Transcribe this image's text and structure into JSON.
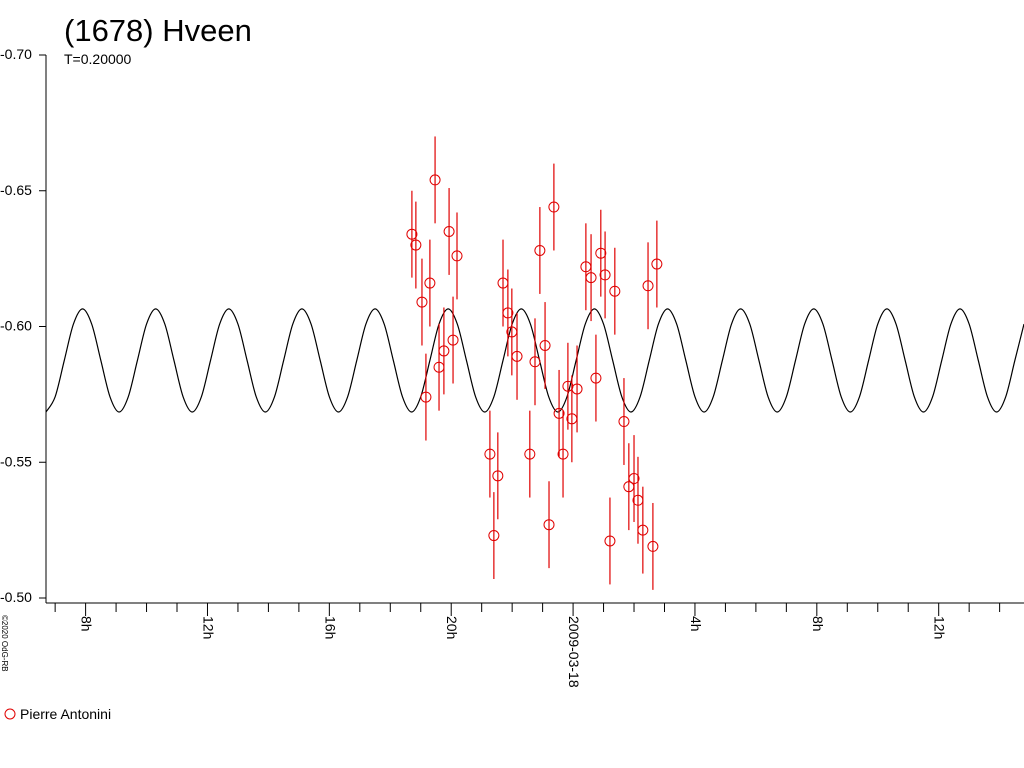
{
  "chart_data": {
    "type": "scatter",
    "title": "(1678) Hveen",
    "subtitle": "T=0.20000",
    "credit": "©2020 OdG-RB",
    "xlim": [
      6.7,
      38.8
    ],
    "ylim": [
      -0.5,
      -0.7
    ],
    "yticks": [
      {
        "value": -0.7,
        "label": "-0.70"
      },
      {
        "value": -0.65,
        "label": "-0.65"
      },
      {
        "value": -0.6,
        "label": "-0.60"
      },
      {
        "value": -0.55,
        "label": "-0.55"
      },
      {
        "value": -0.5,
        "label": "-0.50"
      }
    ],
    "xticks": [
      {
        "value": 8,
        "label": "8h"
      },
      {
        "value": 12,
        "label": "12h"
      },
      {
        "value": 16,
        "label": "16h"
      },
      {
        "value": 20,
        "label": "20h"
      },
      {
        "value": 24,
        "label": "2009-03-18"
      },
      {
        "value": 28,
        "label": "4h"
      },
      {
        "value": 32,
        "label": "8h"
      },
      {
        "value": 36,
        "label": "12h"
      }
    ],
    "xminorticks": [
      7,
      9,
      10,
      11,
      13,
      14,
      15,
      17,
      18,
      19,
      21,
      22,
      23,
      25,
      26,
      27,
      29,
      30,
      31,
      33,
      34,
      35,
      37,
      38
    ],
    "series": [
      {
        "name": "Pierre Antonini",
        "color": "#e00000",
        "x": [
          18.71,
          18.84,
          19.04,
          19.17,
          19.3,
          19.47,
          19.6,
          19.76,
          19.93,
          20.06,
          20.19,
          21.27,
          21.4,
          21.53,
          21.7,
          21.86,
          21.99,
          22.16,
          22.58,
          22.75,
          22.91,
          23.08,
          23.21,
          23.37,
          23.54,
          23.67,
          23.83,
          23.96,
          24.13,
          24.42,
          24.59,
          24.75,
          24.91,
          25.05,
          25.21,
          25.37,
          25.67,
          25.83,
          26.0,
          26.13,
          26.29,
          26.46,
          26.62,
          26.75
        ],
        "values": [
          -0.634,
          -0.63,
          -0.609,
          -0.574,
          -0.616,
          -0.654,
          -0.585,
          -0.591,
          -0.635,
          -0.595,
          -0.626,
          -0.553,
          -0.523,
          -0.545,
          -0.616,
          -0.605,
          -0.598,
          -0.589,
          -0.553,
          -0.587,
          -0.628,
          -0.593,
          -0.527,
          -0.644,
          -0.568,
          -0.553,
          -0.578,
          -0.566,
          -0.577,
          -0.622,
          -0.618,
          -0.581,
          -0.627,
          -0.619,
          -0.521,
          -0.613,
          -0.565,
          -0.541,
          -0.544,
          -0.536,
          -0.525,
          -0.615,
          -0.519,
          -0.623
        ],
        "errors": [
          0.016,
          0.016,
          0.016,
          0.016,
          0.016,
          0.016,
          0.016,
          0.016,
          0.016,
          0.016,
          0.016,
          0.016,
          0.016,
          0.016,
          0.016,
          0.016,
          0.016,
          0.016,
          0.016,
          0.016,
          0.016,
          0.016,
          0.016,
          0.016,
          0.016,
          0.016,
          0.016,
          0.016,
          0.016,
          0.016,
          0.016,
          0.016,
          0.016,
          0.016,
          0.016,
          0.016,
          0.016,
          0.016,
          0.016,
          0.016,
          0.016,
          0.016,
          0.016,
          0.016
        ]
      }
    ],
    "fit": {
      "color": "#000000",
      "x": [
        6.7,
        7,
        7.3,
        7.6,
        7.9,
        8.2,
        8.5,
        8.8,
        9.1,
        9.4,
        9.7,
        10,
        10.3,
        10.6,
        10.9,
        11.2,
        11.5,
        11.8,
        12.1,
        12.4,
        12.7,
        13,
        13.3,
        13.6,
        13.9,
        14.2,
        14.5,
        14.8,
        15.1,
        15.4,
        15.7,
        16,
        16.3,
        16.6,
        16.9,
        17.2,
        17.5,
        17.8,
        18.1,
        18.4,
        18.7,
        19,
        19.3,
        19.6,
        19.9,
        20.2,
        20.5,
        20.8,
        21.1,
        21.4,
        21.7,
        22,
        22.3,
        22.6,
        22.9,
        23.2,
        23.5,
        23.8,
        24.1,
        24.4,
        24.7,
        25,
        25.3,
        25.6,
        25.9,
        26.2,
        26.5,
        26.8,
        27.1,
        27.4,
        27.7,
        28,
        28.3,
        28.6,
        28.9,
        29.2,
        29.5,
        29.8,
        30.1,
        30.4,
        30.7,
        31,
        31.3,
        31.6,
        31.9,
        32.2,
        32.5,
        32.8,
        33.1,
        33.4,
        33.7,
        34,
        34.3,
        34.6,
        34.9,
        35.2,
        35.5,
        35.8,
        36.1,
        36.4,
        36.7,
        37,
        37.3,
        37.6,
        37.9,
        38.2,
        38.5,
        38.8
      ],
      "values": [
        -0.5685,
        -0.5741,
        -0.5875,
        -0.6009,
        -0.6065,
        -0.6009,
        -0.5875,
        -0.5741,
        -0.5685,
        -0.5741,
        -0.5875,
        -0.6009,
        -0.6065,
        -0.6009,
        -0.5875,
        -0.5741,
        -0.5685,
        -0.5741,
        -0.5875,
        -0.6009,
        -0.6065,
        -0.6009,
        -0.5875,
        -0.5741,
        -0.5685,
        -0.5741,
        -0.5875,
        -0.6009,
        -0.6065,
        -0.6009,
        -0.5875,
        -0.5741,
        -0.5685,
        -0.5741,
        -0.5875,
        -0.6009,
        -0.6065,
        -0.6009,
        -0.5875,
        -0.5741,
        -0.5685,
        -0.5741,
        -0.5875,
        -0.6009,
        -0.6065,
        -0.6009,
        -0.5875,
        -0.5741,
        -0.5685,
        -0.5741,
        -0.5875,
        -0.6009,
        -0.6065,
        -0.6009,
        -0.5875,
        -0.5741,
        -0.5685,
        -0.5741,
        -0.5875,
        -0.6009,
        -0.6065,
        -0.6009,
        -0.5875,
        -0.5741,
        -0.5685,
        -0.5741,
        -0.5875,
        -0.6009,
        -0.6065,
        -0.6009,
        -0.5875,
        -0.5741,
        -0.5685,
        -0.5741,
        -0.5875,
        -0.6009,
        -0.6065,
        -0.6009,
        -0.5875,
        -0.5741,
        -0.5685,
        -0.5741,
        -0.5875,
        -0.6009,
        -0.6065,
        -0.6009,
        -0.5875,
        -0.5741,
        -0.5685,
        -0.5741,
        -0.5875,
        -0.6009,
        -0.6065,
        -0.6009,
        -0.5875,
        -0.5741,
        -0.5685,
        -0.5741,
        -0.5875,
        -0.6009,
        -0.6065,
        -0.6009,
        -0.5875,
        -0.5741,
        -0.5685,
        -0.5741,
        -0.5875,
        -0.6009
      ]
    }
  }
}
